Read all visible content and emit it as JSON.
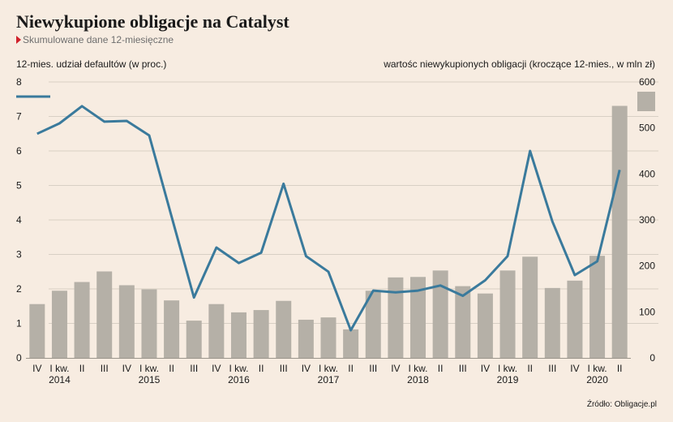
{
  "title": "Niewykupione obligacje na Catalyst",
  "subtitle": "Skumulowane dane 12-miesięczne",
  "source": "Źródło: Obligacje.pl",
  "colors": {
    "bar": "#b5b0a7",
    "line": "#3a7a9c",
    "grid": "#d8cfc4",
    "background": "#f7ece1",
    "accent": "#d0202a"
  },
  "chart_data": {
    "type": "bar+line",
    "left_axis_label": "12-mies. udział defaultów (w proc.)",
    "right_axis_label": "wartośc niewykupionych obligacji (kroczące 12-mies., w mln zł)",
    "left_ylim": [
      0,
      8
    ],
    "right_ylim": [
      0,
      600
    ],
    "left_ticks": [
      "0",
      "1",
      "2",
      "3",
      "4",
      "5",
      "6",
      "7",
      "8"
    ],
    "right_ticks": [
      "0",
      "100",
      "200",
      "300",
      "400",
      "500",
      "600"
    ],
    "categories": [
      "IV",
      "I kw.",
      "II",
      "III",
      "IV",
      "I kw.",
      "II",
      "III",
      "IV",
      "I kw.",
      "II",
      "III",
      "IV",
      "I kw.",
      "II",
      "III",
      "IV",
      "I kw.",
      "II",
      "III",
      "IV",
      "I kw.",
      "II",
      "III",
      "IV",
      "I kw.",
      "II"
    ],
    "year_labels": [
      {
        "index": 1,
        "label": "2014"
      },
      {
        "index": 5,
        "label": "2015"
      },
      {
        "index": 9,
        "label": "2016"
      },
      {
        "index": 13,
        "label": "2017"
      },
      {
        "index": 17,
        "label": "2018"
      },
      {
        "index": 21,
        "label": "2019"
      },
      {
        "index": 25,
        "label": "2020"
      }
    ],
    "bar_values": [
      117,
      146,
      165,
      188,
      158,
      149,
      125,
      81,
      117,
      99,
      104,
      124,
      83,
      88,
      62,
      146,
      175,
      176,
      190,
      156,
      140,
      190,
      220,
      152,
      168,
      222,
      548
    ],
    "line_values": [
      6.5,
      6.8,
      7.3,
      6.85,
      6.87,
      6.45,
      4.1,
      1.75,
      3.2,
      2.75,
      3.05,
      5.05,
      2.95,
      2.5,
      0.8,
      1.95,
      1.9,
      1.95,
      2.1,
      1.8,
      2.25,
      2.95,
      6.0,
      3.95,
      2.4,
      2.8,
      5.45
    ],
    "grid": true,
    "legend": "top"
  }
}
